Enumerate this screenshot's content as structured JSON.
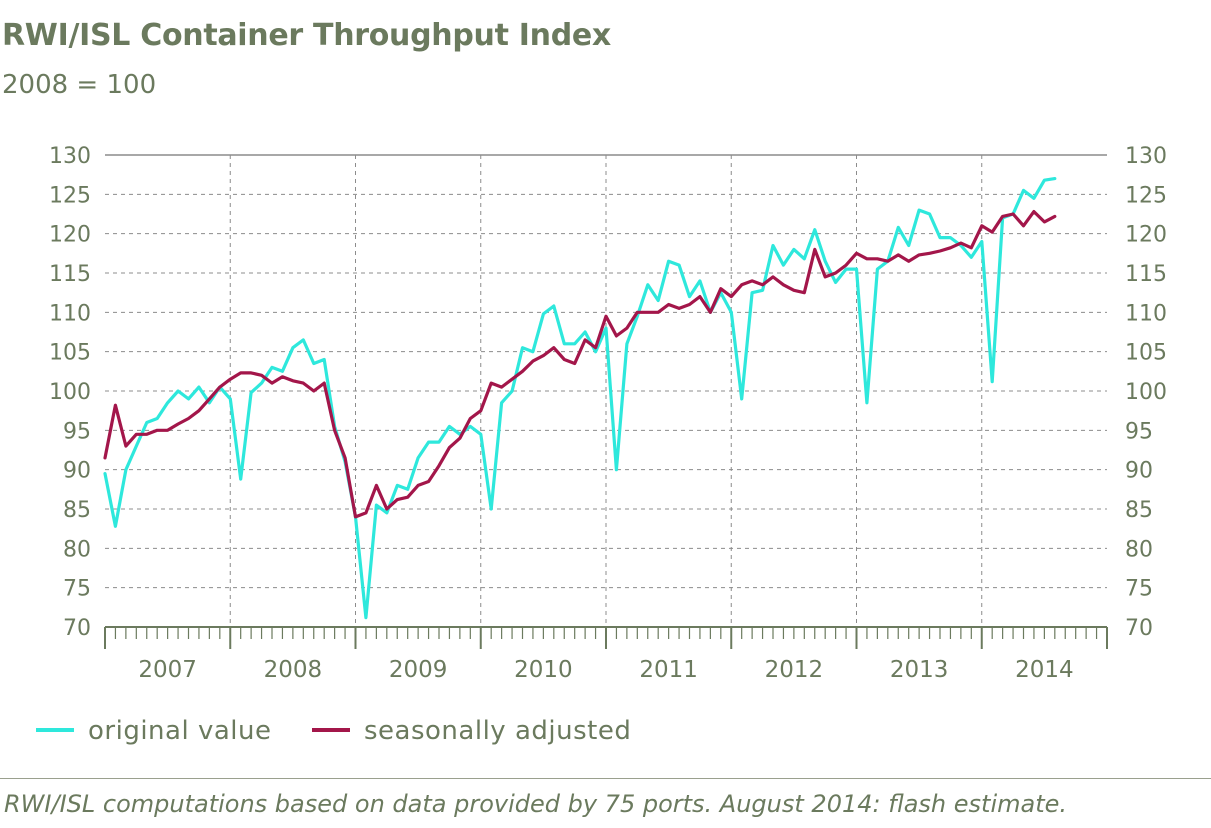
{
  "title": "RWI/ISL Container Throughput Index",
  "subtitle": "2008 = 100",
  "footnote": "RWI/ISL computations based on data provided by 75 ports. August 2014: flash estimate.",
  "colors": {
    "original": "#2ee8dc",
    "adjusted": "#a3164a",
    "text": "#6b7a5e",
    "grid": "#8c8c8c",
    "axis": "#6b7a5e"
  },
  "chart_data": {
    "type": "line",
    "ylim": [
      70,
      130
    ],
    "yticks": [
      70,
      75,
      80,
      85,
      90,
      95,
      100,
      105,
      110,
      115,
      120,
      125,
      130
    ],
    "ytick_labels": [
      "70",
      "75",
      "80",
      "85",
      "90",
      "95",
      "100",
      "105",
      "110",
      "115",
      "120",
      "125",
      "130"
    ],
    "year_labels": [
      "2007",
      "2008",
      "2009",
      "2010",
      "2011",
      "2012",
      "2013",
      "2014"
    ],
    "grid": true,
    "legend_position": "bottom-left",
    "series": [
      {
        "name": "original value",
        "key": "original",
        "values": [
          89.5,
          82.8,
          90.0,
          93.0,
          96.0,
          96.5,
          98.5,
          100.0,
          99.0,
          100.5,
          98.5,
          100.5,
          99.0,
          88.8,
          99.8,
          101.0,
          103.0,
          102.5,
          105.5,
          106.5,
          103.5,
          104.0,
          95.5,
          91.0,
          84.0,
          71.2,
          85.5,
          84.5,
          88.0,
          87.5,
          91.5,
          93.5,
          93.5,
          95.5,
          94.5,
          95.5,
          94.5,
          85.0,
          98.5,
          100.0,
          105.5,
          105.0,
          109.8,
          110.8,
          106.0,
          106.0,
          107.5,
          105.0,
          108.0,
          90.0,
          106.0,
          109.5,
          113.5,
          111.5,
          116.5,
          116.0,
          112.0,
          114.0,
          110.0,
          112.5,
          110.0,
          99.0,
          112.5,
          112.8,
          118.5,
          116.0,
          118.0,
          116.8,
          120.5,
          116.5,
          113.8,
          115.5,
          115.5,
          98.5,
          115.5,
          116.5,
          120.8,
          118.5,
          123.0,
          122.5,
          119.5,
          119.5,
          118.5,
          117.0,
          119.0,
          101.2,
          122.0,
          122.5,
          125.5,
          124.5,
          126.8,
          127.0
        ]
      },
      {
        "name": "seasonally adjusted",
        "key": "adjusted",
        "values": [
          91.5,
          98.2,
          93.0,
          94.5,
          94.5,
          95.0,
          95.0,
          95.8,
          96.5,
          97.5,
          99.0,
          100.5,
          101.5,
          102.3,
          102.3,
          102.0,
          101.0,
          101.8,
          101.3,
          101.0,
          100.0,
          101.0,
          95.0,
          91.5,
          84.0,
          84.5,
          88.0,
          85.0,
          86.2,
          86.5,
          88.0,
          88.5,
          90.5,
          92.8,
          94.0,
          96.5,
          97.5,
          101.0,
          100.5,
          101.5,
          102.5,
          103.8,
          104.5,
          105.5,
          104.0,
          103.5,
          106.5,
          105.5,
          109.5,
          107.0,
          108.0,
          110.0,
          110.0,
          110.0,
          111.0,
          110.5,
          111.0,
          112.0,
          110.0,
          113.0,
          112.0,
          113.5,
          114.0,
          113.5,
          114.5,
          113.5,
          112.8,
          112.5,
          118.0,
          114.5,
          115.0,
          116.0,
          117.5,
          116.8,
          116.8,
          116.5,
          117.3,
          116.5,
          117.3,
          117.5,
          117.8,
          118.2,
          118.8,
          118.2,
          121.0,
          120.2,
          122.2,
          122.5,
          121.0,
          122.8,
          121.5,
          122.2
        ]
      }
    ]
  }
}
